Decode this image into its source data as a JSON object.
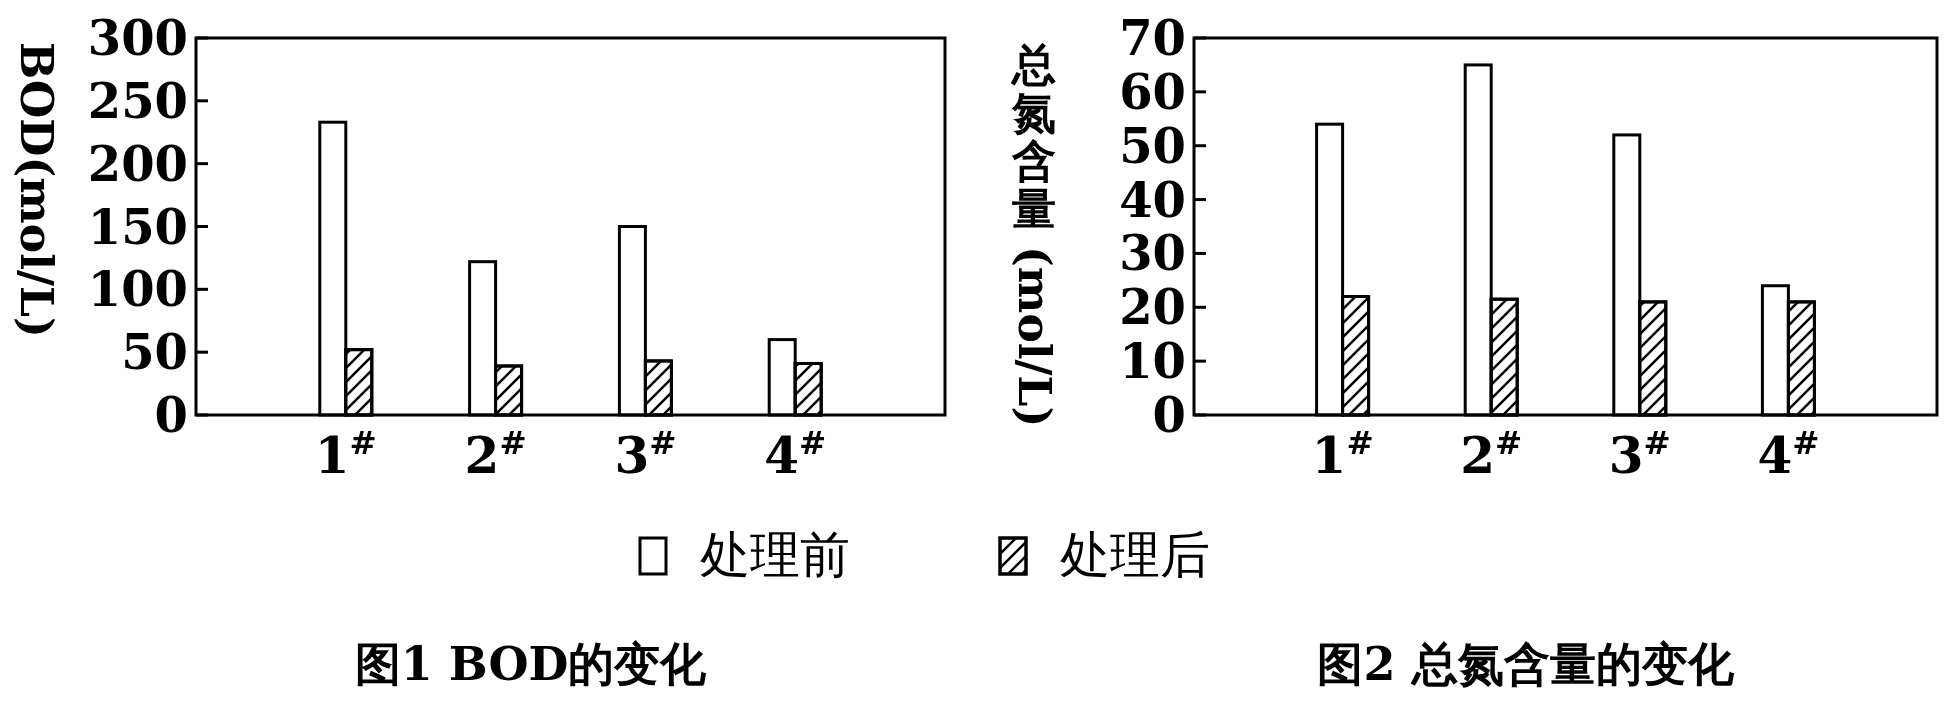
{
  "chart_data": [
    {
      "type": "bar",
      "title": "图1 BOD的变化",
      "ylabel": "BOD(mol/L)",
      "categories": [
        "1$^{#}$",
        "2$^{#}$",
        "3$^{#}$",
        "4$^{#}$"
      ],
      "series": [
        {
          "name": "处理前",
          "color": "#ffffff",
          "values": [
            233,
            122,
            150,
            60
          ]
        },
        {
          "name": "处理后",
          "color": "#ffffff",
          "values": [
            52,
            39,
            43,
            41
          ]
        }
      ],
      "ylim": [
        0,
        300
      ],
      "yticks": [
        0,
        50,
        100,
        150,
        200,
        250,
        300
      ],
      "legend": "bottom"
    },
    {
      "type": "bar",
      "title": "图2 总氮含量的变化",
      "ylabel": "总氮含量 (mol/L)",
      "categories": [
        "1$^{#}$",
        "2$^{#}$",
        "3$^{#}$",
        "4$^{#}$"
      ],
      "series": [
        {
          "color": "#ffffff",
          "values": [
            54,
            65,
            52,
            24
          ]
        },
        {
          "color": "#ffffff",
          "values": [
            22,
            21.5,
            21,
            21
          ]
        }
      ],
      "ylim": [
        0,
        70
      ],
      "yticks": [
        0,
        10,
        20,
        30,
        40,
        50,
        60,
        70
      ],
      "legend": false
    }
  ]
}
